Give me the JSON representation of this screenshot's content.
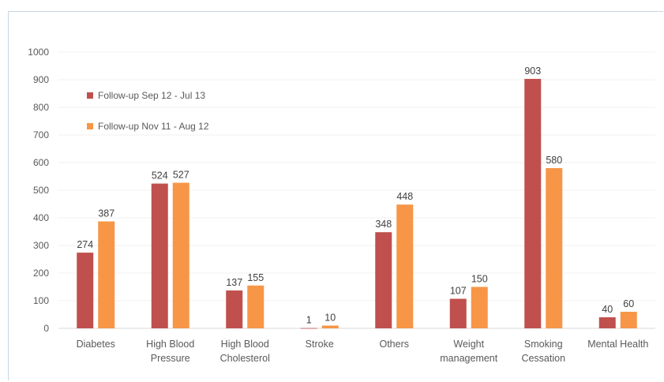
{
  "chart_data": {
    "type": "bar",
    "title": "",
    "xlabel": "",
    "ylabel": "",
    "ylim": [
      0,
      1000
    ],
    "yticks": [
      0,
      100,
      200,
      300,
      400,
      500,
      600,
      700,
      800,
      900,
      1000
    ],
    "grid": true,
    "legend_position": "top-left",
    "categories": [
      [
        "Diabetes"
      ],
      [
        "High Blood",
        "Pressure"
      ],
      [
        "High Blood",
        "Cholesterol"
      ],
      [
        "Stroke"
      ],
      [
        "Others"
      ],
      [
        "Weight",
        "management"
      ],
      [
        "Smoking",
        "Cessation"
      ],
      [
        "Mental Health"
      ]
    ],
    "series": [
      {
        "name": "Follow-up Sep 12 - Jul 13",
        "color": "#c0504d",
        "values": [
          274,
          524,
          137,
          1,
          348,
          107,
          903,
          40
        ]
      },
      {
        "name": "Follow-up Nov 11 - Aug 12",
        "color": "#f79646",
        "values": [
          387,
          527,
          155,
          10,
          448,
          150,
          580,
          60
        ]
      }
    ]
  }
}
